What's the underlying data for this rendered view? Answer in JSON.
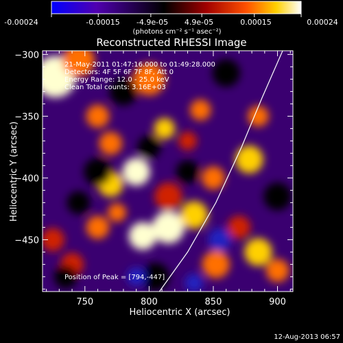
{
  "colorbar": {
    "tick_labels": [
      "-0.00024",
      "-0.00015",
      "-4.9e-05",
      "4.9e-05",
      "0.00015",
      "0.00024"
    ],
    "unit_label": "(photons cm⁻² s⁻¹ asec⁻²)",
    "range": [
      -0.00024,
      0.00024
    ],
    "stops": [
      "#0000ff",
      "#5000b0",
      "#000000",
      "#a00000",
      "#ff5000",
      "#ffd000",
      "#ffffff"
    ]
  },
  "image": {
    "title": "Reconstructed RHESSI Image",
    "info_lines": [
      "21-May-2011 01:47:16.000 to 01:49:28.000",
      "Detectors: 4F 5F 6F 7F 8F, Att 0",
      "Energy Range: 12.0 - 25.0 keV",
      "Clean    Total counts: 3.16E+03"
    ],
    "peak_text": "Position of Peak = [794,-447]",
    "timestamp": "12-Aug-2013 06:57"
  },
  "chart_data": {
    "type": "heatmap",
    "title": "Reconstructed RHESSI Image",
    "xlabel": "Heliocentric X (arcsec)",
    "ylabel": "Heliocentric Y (arcsec)",
    "xlim": [
      717,
      912
    ],
    "ylim": [
      -492,
      -297
    ],
    "x_ticks": [
      750,
      800,
      850,
      900
    ],
    "y_ticks": [
      -300,
      -350,
      -400,
      -450
    ],
    "x_tick_labels": [
      "750",
      "800",
      "850",
      "900"
    ],
    "y_tick_labels": [
      "−300",
      "−350",
      "−400",
      "−450"
    ],
    "peak": [
      794,
      -447
    ],
    "limb_curve": [
      [
        808,
        -492
      ],
      [
        830,
        -460
      ],
      [
        852,
        -420
      ],
      [
        872,
        -375
      ],
      [
        888,
        -335
      ],
      [
        904,
        -297
      ]
    ],
    "blobs": [
      {
        "x": 727,
        "y": -318,
        "level": 0.95,
        "r": 18
      },
      {
        "x": 745,
        "y": -305,
        "level": 0.7,
        "r": 14
      },
      {
        "x": 800,
        "y": -320,
        "level": 0.6,
        "r": 14
      },
      {
        "x": 812,
        "y": -360,
        "level": 0.85,
        "r": 9
      },
      {
        "x": 770,
        "y": -372,
        "level": 0.6,
        "r": 10
      },
      {
        "x": 790,
        "y": -395,
        "level": 0.95,
        "r": 12
      },
      {
        "x": 770,
        "y": -405,
        "level": 0.8,
        "r": 11
      },
      {
        "x": 815,
        "y": -415,
        "level": 0.55,
        "r": 12
      },
      {
        "x": 815,
        "y": -440,
        "level": 1.0,
        "r": 14
      },
      {
        "x": 795,
        "y": -447,
        "level": 1.0,
        "r": 12
      },
      {
        "x": 835,
        "y": -430,
        "level": 0.75,
        "r": 12
      },
      {
        "x": 760,
        "y": -440,
        "level": 0.7,
        "r": 10
      },
      {
        "x": 775,
        "y": -428,
        "level": 0.6,
        "r": 8
      },
      {
        "x": 850,
        "y": -400,
        "level": 0.7,
        "r": 10
      },
      {
        "x": 878,
        "y": -385,
        "level": 0.8,
        "r": 12
      },
      {
        "x": 885,
        "y": -350,
        "level": 0.6,
        "r": 9
      },
      {
        "x": 870,
        "y": -440,
        "level": 0.55,
        "r": 10
      },
      {
        "x": 885,
        "y": -460,
        "level": 0.85,
        "r": 12
      },
      {
        "x": 852,
        "y": -470,
        "level": 0.7,
        "r": 12
      },
      {
        "x": 740,
        "y": -470,
        "level": 0.5,
        "r": 10
      },
      {
        "x": 725,
        "y": -450,
        "level": 0.55,
        "r": 10
      },
      {
        "x": 900,
        "y": -475,
        "level": 0.65,
        "r": 10
      },
      {
        "x": 840,
        "y": -345,
        "level": 0.6,
        "r": 9
      },
      {
        "x": 760,
        "y": -350,
        "level": 0.7,
        "r": 10
      },
      {
        "x": 830,
        "y": -370,
        "level": 0.5,
        "r": 8
      },
      {
        "x": 760,
        "y": -395,
        "level": -0.7,
        "r": 12
      },
      {
        "x": 800,
        "y": -375,
        "level": -0.6,
        "r": 10
      },
      {
        "x": 780,
        "y": -330,
        "level": -0.7,
        "r": 12
      },
      {
        "x": 830,
        "y": -395,
        "level": -0.5,
        "r": 10
      },
      {
        "x": 745,
        "y": -420,
        "level": -0.6,
        "r": 10
      },
      {
        "x": 855,
        "y": -450,
        "level": -0.8,
        "r": 10
      },
      {
        "x": 805,
        "y": -480,
        "level": -0.6,
        "r": 12
      },
      {
        "x": 860,
        "y": -315,
        "level": -0.65,
        "r": 12
      },
      {
        "x": 900,
        "y": -415,
        "level": -0.7,
        "r": 12
      },
      {
        "x": 735,
        "y": -480,
        "level": -0.5,
        "r": 10
      },
      {
        "x": 790,
        "y": -480,
        "level": -0.85,
        "r": 8
      },
      {
        "x": 835,
        "y": -485,
        "level": -0.8,
        "r": 8
      }
    ]
  }
}
